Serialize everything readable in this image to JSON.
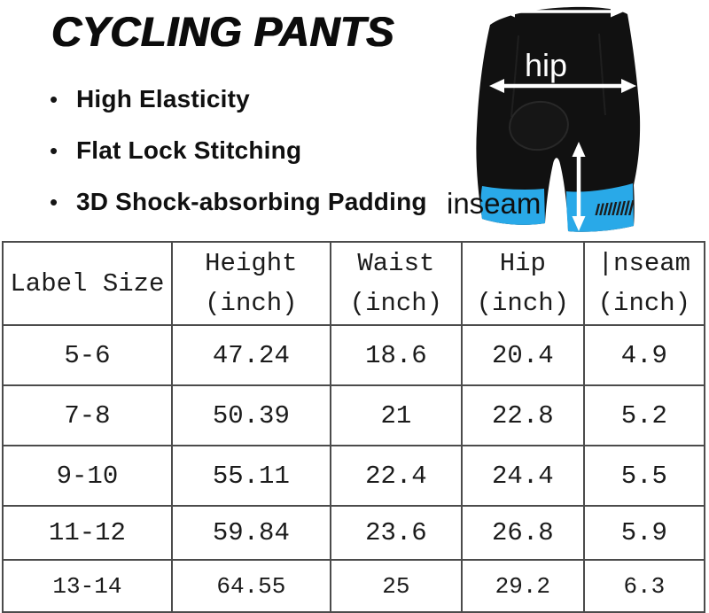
{
  "title": "CYCLING PANTS",
  "features": [
    "High Elasticity",
    "Flat Lock Stitching",
    "3D Shock-absorbing Padding"
  ],
  "diagram": {
    "hip_label": "hip",
    "inseam_label": "inseam",
    "colors": {
      "shorts_black": "#111111",
      "band_blue": "#29a9e8",
      "arrow_white": "#ffffff",
      "stripe_dark": "#1c1c1c"
    }
  },
  "size_table": {
    "columns": [
      [
        "Label Size"
      ],
      [
        "Height",
        "(inch)"
      ],
      [
        "Waist",
        "(inch)"
      ],
      [
        "Hip",
        "(inch)"
      ],
      [
        "|nseam",
        "(inch)"
      ]
    ],
    "rows": [
      [
        "5-6",
        "47.24",
        "18.6",
        "20.4",
        "4.9"
      ],
      [
        "7-8",
        "50.39",
        "21",
        "22.8",
        "5.2"
      ],
      [
        "9-10",
        "55.11",
        "22.4",
        "24.4",
        "5.5"
      ],
      [
        "11-12",
        "59.84",
        "23.6",
        "26.8",
        "5.9"
      ],
      [
        "13-14",
        "64.55",
        "25",
        "29.2",
        "6.3"
      ]
    ]
  },
  "chart_data": {
    "type": "table",
    "title": "CYCLING PANTS size chart",
    "columns": [
      "Label Size",
      "Height (inch)",
      "Waist (inch)",
      "Hip (inch)",
      "|nseam (inch)"
    ],
    "rows": [
      [
        "5-6",
        47.24,
        18.6,
        20.4,
        4.9
      ],
      [
        "7-8",
        50.39,
        21,
        22.8,
        5.2
      ],
      [
        "9-10",
        55.11,
        22.4,
        24.4,
        5.5
      ],
      [
        "11-12",
        59.84,
        23.6,
        26.8,
        5.9
      ],
      [
        "13-14",
        64.55,
        25,
        29.2,
        6.3
      ]
    ]
  }
}
